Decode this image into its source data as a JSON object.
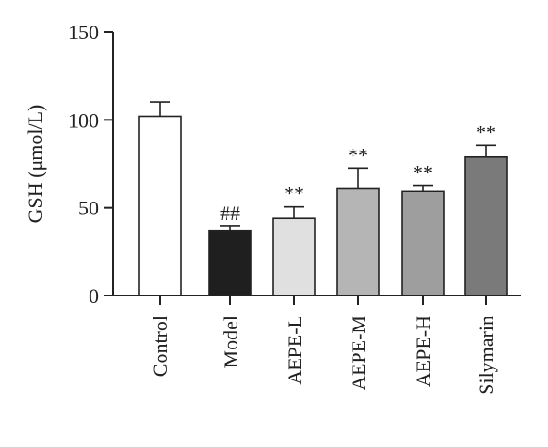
{
  "chart_data": {
    "type": "bar",
    "categories": [
      "Control",
      "Model",
      "AEPE-L",
      "AEPE-M",
      "AEPE-H",
      "Silymarin"
    ],
    "values": [
      102,
      37,
      44,
      61,
      59.5,
      79
    ],
    "errors": [
      8,
      2.5,
      6.5,
      11.5,
      3,
      6.5
    ],
    "annotations": [
      "",
      "##",
      "**",
      "**",
      "**",
      "**"
    ],
    "bar_colors": [
      "#ffffff",
      "#1f1f1f",
      "#e0e0e0",
      "#b5b5b5",
      "#9e9e9e",
      "#7a7a7a"
    ],
    "ylabel": "GSH (μmol/L)",
    "ylim": [
      0,
      150
    ],
    "yticks": [
      0,
      50,
      100,
      150
    ],
    "grid": false,
    "legend": "none"
  }
}
